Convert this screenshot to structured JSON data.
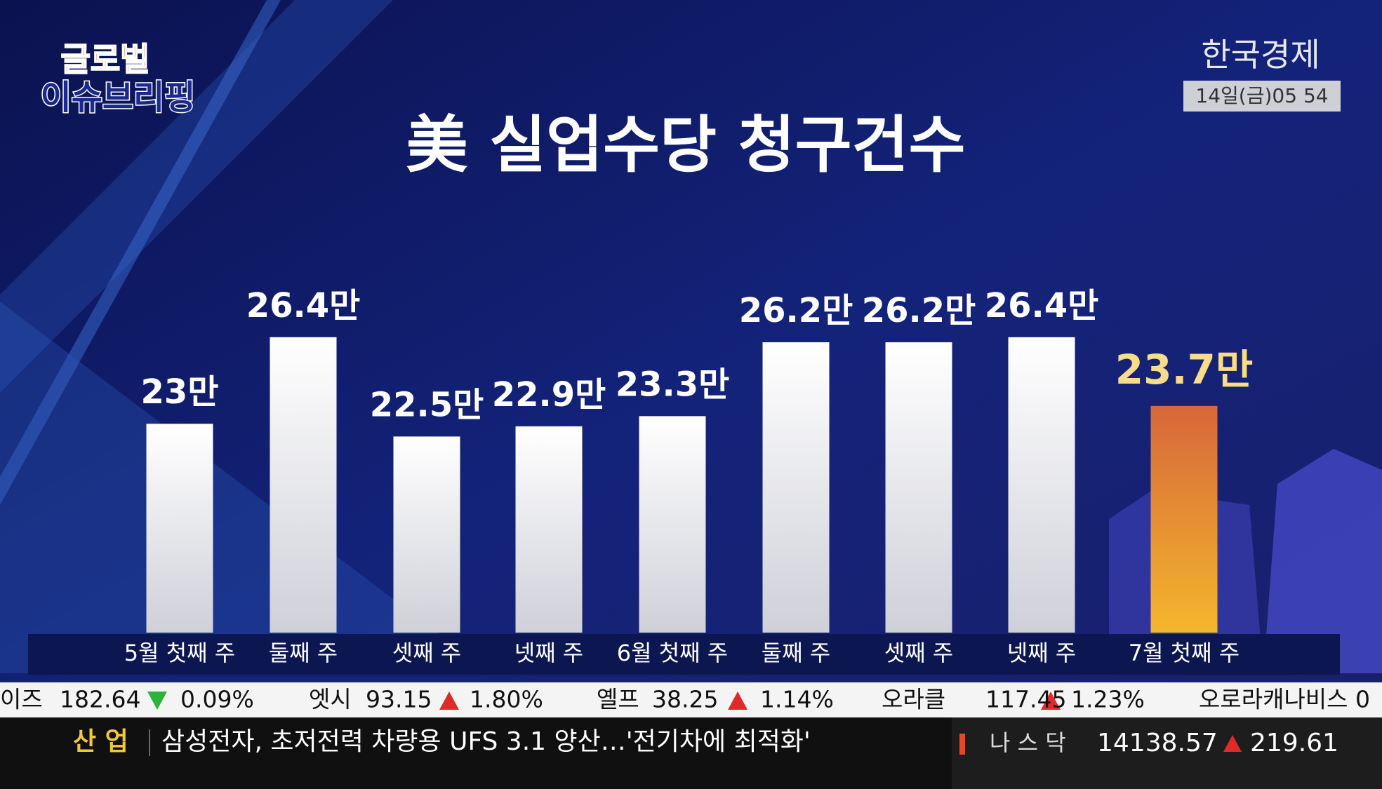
{
  "chart_data": {
    "type": "bar",
    "title": "美 실업수당 청구건수",
    "categories": [
      "5월 첫째 주",
      "둘째 주",
      "셋째 주",
      "넷째 주",
      "6월 첫째 주",
      "둘째 주",
      "셋째 주",
      "넷째 주",
      "7월 첫째 주"
    ],
    "values": [
      23,
      26.4,
      22.5,
      22.9,
      23.3,
      26.2,
      26.2,
      26.4,
      23.7
    ],
    "value_labels": [
      "23만",
      "26.4만",
      "22.5만",
      "22.9만",
      "23.3만",
      "26.2만",
      "26.2만",
      "26.4만",
      "23.7만"
    ],
    "colors": [
      "#e8e8ec",
      "#e8e8ec",
      "#e8e8ec",
      "#e8e8ec",
      "#e8e8ec",
      "#e8e8ec",
      "#e8e8ec",
      "#e8e8ec",
      "#e98a30"
    ],
    "ylim": [
      14.8,
      27
    ]
  },
  "logo": {
    "line1": "글로벌",
    "line2": "이슈브리핑"
  },
  "channel": {
    "name": "한국경제",
    "time": "14일(금)05 54"
  },
  "ticker": [
    {
      "name": "이즈",
      "price": "182.64",
      "change": "0.09%"
    },
    {
      "name": "엣시",
      "price": "93.15",
      "change": "1.80%"
    },
    {
      "name": "옐프",
      "price": "38.25",
      "change": "1.14%"
    },
    {
      "name": "오라클",
      "price": "117.45",
      "change": "1.23%"
    },
    {
      "name": "오로라캐나비스 0"
    }
  ],
  "news": {
    "section": "산 업",
    "headline": "삼성전자, 초저전력 차량용 UFS 3.1 양산…'전기차에 최적화'"
  },
  "index": {
    "name": "나 스 닥",
    "value": "14138.57",
    "change": "219.61"
  }
}
